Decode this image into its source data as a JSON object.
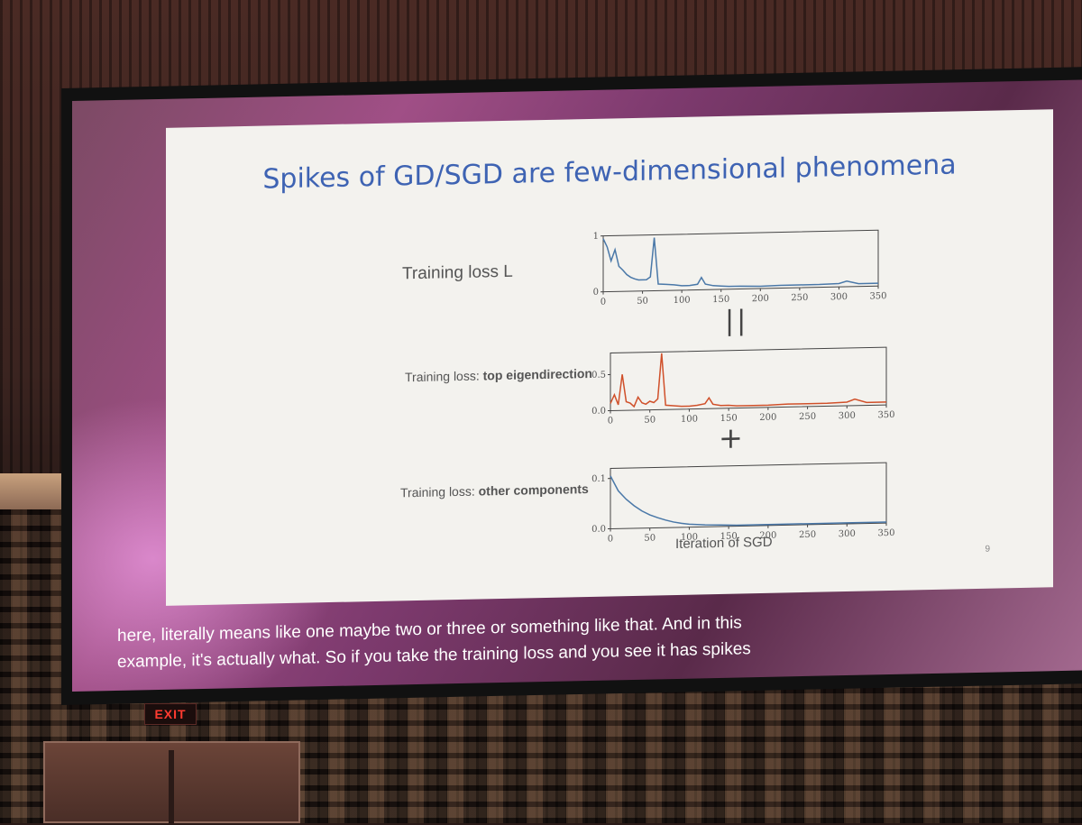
{
  "slide": {
    "title": "Spikes of GD/SGD are few-dimensional phenomena",
    "rows": [
      {
        "label": "Training loss L",
        "label_bold": ""
      },
      {
        "label_plain": "Training loss: ",
        "label_bold": "top eigendirection"
      },
      {
        "label_plain": "Training loss: ",
        "label_bold": "other components"
      }
    ],
    "equals_symbol": "||",
    "plus_symbol": "+",
    "x_axis_title": "Iteration of SGD",
    "slide_number": "9"
  },
  "caption": {
    "line1": "here, literally means like one maybe two or three or something like that. And in this",
    "line2": "example, it's actually what. So if you take the training loss and you see it has spikes"
  },
  "exit_sign": "EXIT",
  "colors": {
    "title_blue": "#3e63b3",
    "line_blue": "#4a78a8",
    "line_red": "#d0502a",
    "slide_bg": "#f3f2ee"
  },
  "chart_data": [
    {
      "type": "line",
      "title": "",
      "xlabel": "",
      "ylabel": "",
      "xlim": [
        0,
        350
      ],
      "ylim": [
        0,
        1
      ],
      "xticks": [
        "0",
        "50",
        "100",
        "150",
        "200",
        "250",
        "300",
        "350"
      ],
      "yticks": [
        "0",
        "1"
      ],
      "series": [
        {
          "color": "#4a78a8",
          "x": [
            0,
            5,
            10,
            15,
            20,
            25,
            30,
            35,
            40,
            45,
            50,
            55,
            60,
            65,
            70,
            80,
            90,
            100,
            110,
            120,
            125,
            130,
            140,
            150,
            160,
            175,
            200,
            225,
            250,
            275,
            300,
            310,
            325,
            350
          ],
          "y": [
            0.95,
            0.8,
            0.55,
            0.75,
            0.45,
            0.38,
            0.3,
            0.25,
            0.22,
            0.2,
            0.2,
            0.2,
            0.25,
            0.95,
            0.12,
            0.11,
            0.1,
            0.08,
            0.08,
            0.1,
            0.22,
            0.1,
            0.07,
            0.06,
            0.05,
            0.05,
            0.04,
            0.05,
            0.05,
            0.05,
            0.06,
            0.1,
            0.05,
            0.05
          ]
        }
      ]
    },
    {
      "type": "line",
      "title": "",
      "xlabel": "",
      "ylabel": "",
      "xlim": [
        0,
        350
      ],
      "ylim": [
        0,
        0.8
      ],
      "xticks": [
        "0",
        "50",
        "100",
        "150",
        "200",
        "250",
        "300",
        "350"
      ],
      "yticks": [
        "0.0",
        "0.5"
      ],
      "series": [
        {
          "color": "#d0502a",
          "x": [
            0,
            5,
            10,
            15,
            20,
            25,
            30,
            35,
            40,
            45,
            50,
            55,
            60,
            65,
            70,
            80,
            90,
            100,
            110,
            120,
            125,
            130,
            140,
            150,
            160,
            175,
            200,
            225,
            250,
            275,
            300,
            310,
            325,
            350
          ],
          "y": [
            0.1,
            0.22,
            0.08,
            0.5,
            0.12,
            0.1,
            0.05,
            0.18,
            0.1,
            0.08,
            0.12,
            0.1,
            0.15,
            0.78,
            0.06,
            0.05,
            0.04,
            0.04,
            0.05,
            0.07,
            0.15,
            0.06,
            0.04,
            0.04,
            0.03,
            0.03,
            0.03,
            0.04,
            0.04,
            0.04,
            0.05,
            0.09,
            0.04,
            0.04
          ]
        }
      ]
    },
    {
      "type": "line",
      "title": "",
      "xlabel": "Iteration of SGD",
      "ylabel": "",
      "xlim": [
        0,
        350
      ],
      "ylim": [
        0,
        0.12
      ],
      "xticks": [
        "0",
        "50",
        "100",
        "150",
        "200",
        "250",
        "300",
        "350"
      ],
      "yticks": [
        "0.0",
        "0.1"
      ],
      "series": [
        {
          "color": "#4a78a8",
          "x": [
            0,
            5,
            10,
            20,
            30,
            40,
            50,
            60,
            70,
            80,
            90,
            100,
            120,
            140,
            160,
            200,
            250,
            300,
            350
          ],
          "y": [
            0.105,
            0.09,
            0.075,
            0.058,
            0.045,
            0.034,
            0.026,
            0.02,
            0.015,
            0.011,
            0.008,
            0.006,
            0.004,
            0.003,
            0.002,
            0.002,
            0.002,
            0.002,
            0.002
          ]
        }
      ]
    }
  ]
}
